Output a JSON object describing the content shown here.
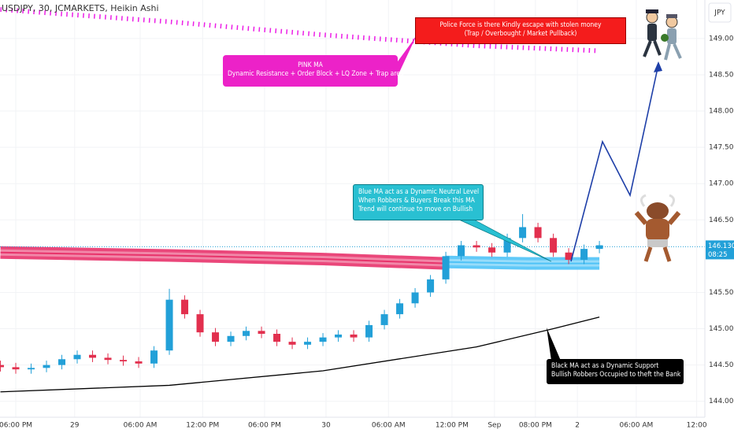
{
  "chart_data": {
    "type": "candlestick",
    "title": "USDJPY, 30, JCMARKETS, Heikin Ashi",
    "currency_button": "JPY",
    "up_color": "#22a0d8",
    "down_color": "#e2304e",
    "x": [
      -3,
      0,
      3,
      6,
      9,
      12,
      15,
      18,
      21,
      24,
      27,
      30,
      33,
      36,
      39,
      42,
      45,
      48,
      51,
      54,
      57,
      60,
      63,
      66,
      69,
      72,
      75,
      78,
      81,
      84,
      87,
      90,
      93,
      96,
      99,
      102,
      105,
      108,
      111,
      114
    ],
    "open": [
      144.5,
      144.47,
      144.44,
      144.46,
      144.5,
      144.58,
      144.64,
      144.6,
      144.57,
      144.55,
      144.52,
      144.7,
      145.4,
      145.2,
      144.95,
      144.82,
      144.9,
      144.97,
      144.93,
      144.82,
      144.78,
      144.82,
      144.88,
      144.92,
      144.88,
      145.05,
      145.2,
      145.35,
      145.5,
      145.68,
      146.0,
      146.15,
      146.12,
      146.05,
      146.25,
      146.4,
      146.25,
      146.05,
      145.95,
      146.1
    ],
    "high": [
      144.56,
      144.53,
      144.52,
      144.56,
      144.64,
      144.7,
      144.7,
      144.66,
      144.63,
      144.61,
      144.76,
      145.55,
      145.46,
      145.26,
      145.01,
      144.96,
      145.03,
      145.03,
      144.99,
      144.88,
      144.88,
      144.94,
      144.98,
      144.98,
      145.11,
      145.26,
      145.41,
      145.56,
      145.74,
      146.06,
      146.21,
      146.21,
      146.18,
      146.31,
      146.58,
      146.46,
      146.31,
      146.11,
      146.16,
      146.21
    ],
    "low": [
      144.41,
      144.38,
      144.38,
      144.4,
      144.44,
      144.52,
      144.54,
      144.51,
      144.49,
      144.46,
      144.46,
      144.64,
      145.14,
      144.89,
      144.76,
      144.76,
      144.84,
      144.87,
      144.76,
      144.72,
      144.72,
      144.76,
      144.82,
      144.82,
      144.82,
      144.99,
      145.14,
      145.29,
      145.44,
      145.62,
      145.94,
      146.06,
      145.99,
      145.99,
      146.19,
      146.19,
      145.99,
      145.89,
      145.89,
      146.04
    ],
    "close": [
      144.47,
      144.44,
      144.46,
      144.5,
      144.58,
      144.64,
      144.6,
      144.57,
      144.55,
      144.52,
      144.7,
      145.4,
      145.2,
      144.95,
      144.82,
      144.9,
      144.97,
      144.93,
      144.82,
      144.78,
      144.82,
      144.88,
      144.92,
      144.88,
      145.05,
      145.2,
      145.35,
      145.5,
      145.68,
      146.0,
      146.15,
      146.12,
      146.05,
      146.25,
      146.4,
      146.25,
      146.05,
      145.95,
      146.1,
      146.15
    ],
    "series": [
      {
        "color": "#ec1ee6",
        "style": "dotted",
        "x": [
          -3,
          30,
          60,
          90,
          114
        ],
        "values": [
          149.4,
          149.23,
          149.05,
          148.9,
          148.83
        ]
      },
      {
        "color": "#e8336b",
        "style": "band",
        "x": [
          -3,
          30,
          60,
          84
        ],
        "values": [
          146.05,
          146.01,
          145.96,
          145.9
        ]
      },
      {
        "color": "#4fc3f7",
        "style": "band",
        "x": [
          84,
          100,
          114
        ],
        "values": [
          145.92,
          145.9,
          145.9
        ]
      },
      {
        "color": "#000000",
        "style": "solid",
        "x": [
          -3,
          30,
          60,
          90,
          105,
          114
        ],
        "values": [
          144.13,
          144.22,
          144.42,
          144.75,
          145.0,
          145.16
        ]
      }
    ],
    "last_price": {
      "value": 146.13,
      "label": "146.130"
    },
    "countdown": "08:25",
    "xlim": [
      -3.08,
      134.6
    ],
    "ylim": [
      143.78,
      149.53
    ],
    "yticks": [
      {
        "value": 144,
        "label": "144.000"
      },
      {
        "value": 144.5,
        "label": "144.500"
      },
      {
        "value": 145,
        "label": "145.000"
      },
      {
        "value": 145.5,
        "label": "145.500"
      },
      {
        "value": 146.5,
        "label": "146.500"
      },
      {
        "value": 147,
        "label": "147.000"
      },
      {
        "value": 147.5,
        "label": "147.500"
      },
      {
        "value": 148,
        "label": "148.000"
      },
      {
        "value": 148.5,
        "label": "148.500"
      },
      {
        "value": 149,
        "label": "149.000"
      }
    ],
    "xticks": [
      {
        "value": 0,
        "label": "06:00 PM"
      },
      {
        "value": 11.5,
        "label": "29"
      },
      {
        "value": 24.3,
        "label": "06:00 AM"
      },
      {
        "value": 36.5,
        "label": "12:00 PM"
      },
      {
        "value": 48.6,
        "label": "06:00 PM"
      },
      {
        "value": 60.6,
        "label": "30"
      },
      {
        "value": 72.8,
        "label": "06:00 AM"
      },
      {
        "value": 85.2,
        "label": "12:00 PM"
      },
      {
        "value": 93.5,
        "label": "Sep"
      },
      {
        "value": 101.5,
        "label": "08:00 PM"
      },
      {
        "value": 109.7,
        "label": "2"
      },
      {
        "value": 121.2,
        "label": "06:00 AM"
      },
      {
        "value": 133,
        "label": "12:00"
      }
    ],
    "annotations": [
      {
        "lines": [
          "Police Force is there Kindly escape with stolen money",
          "(Trap / Overbought / Market Pullback)"
        ]
      },
      {
        "lines": [
          "PINK MA",
          "Dynamic Resistance + Order Block + LQ Zone + Trap area"
        ]
      },
      {
        "lines": [
          "Blue MA act as a Dynamic Neutral Level",
          "When Robbers & Buyers Break this MA",
          "Trend will continue to move on Bullish"
        ]
      },
      {
        "lines": [
          "Black MA act as a Dynamic Support",
          "Bullish Robbers Occupied to theft the Bank"
        ]
      }
    ]
  }
}
